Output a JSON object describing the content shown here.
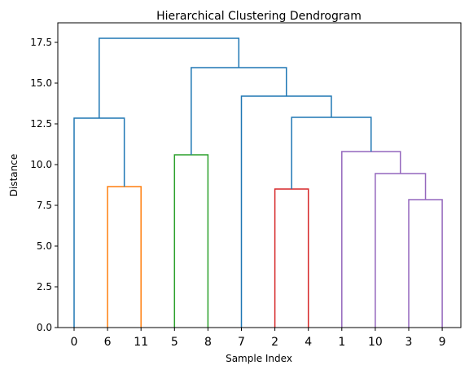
{
  "chart_data": {
    "type": "dendrogram",
    "title": "Hierarchical Clustering Dendrogram",
    "xlabel": "Sample Index",
    "ylabel": "Distance",
    "ylim": [
      0,
      18.7
    ],
    "yticks": [
      0.0,
      2.5,
      5.0,
      7.5,
      10.0,
      12.5,
      15.0,
      17.5
    ],
    "ytick_labels": [
      "0.0",
      "2.5",
      "5.0",
      "7.5",
      "10.0",
      "12.5",
      "15.0",
      "17.5"
    ],
    "leaf_labels": [
      "0",
      "6",
      "11",
      "5",
      "8",
      "7",
      "2",
      "4",
      "1",
      "10",
      "3",
      "9"
    ],
    "merges": [
      {
        "left": "leaf:1",
        "right": "leaf:2",
        "height": 8.65,
        "color": "#ff7f0e"
      },
      {
        "left": "leaf:3",
        "right": "leaf:4",
        "height": 10.6,
        "color": "#2ca02c"
      },
      {
        "left": "leaf:6",
        "right": "leaf:7",
        "height": 8.5,
        "color": "#d62728"
      },
      {
        "left": "leaf:10",
        "right": "leaf:11",
        "height": 7.85,
        "color": "#9467bd"
      },
      {
        "left": "leaf:9",
        "right": "node:3",
        "height": 9.45,
        "color": "#9467bd"
      },
      {
        "left": "leaf:8",
        "right": "node:4",
        "height": 10.8,
        "color": "#9467bd"
      },
      {
        "left": "node:2",
        "right": "node:5",
        "height": 12.9,
        "color": "#1f77b4"
      },
      {
        "left": "leaf:5",
        "right": "node:6",
        "height": 14.2,
        "color": "#1f77b4"
      },
      {
        "left": "node:1",
        "right": "node:7",
        "height": 15.95,
        "color": "#1f77b4"
      },
      {
        "left": "leaf:0",
        "right": "node:0",
        "height": 12.85,
        "color": "#1f77b4"
      },
      {
        "left": "node:9",
        "right": "node:8",
        "height": 17.75,
        "color": "#1f77b4"
      }
    ]
  }
}
